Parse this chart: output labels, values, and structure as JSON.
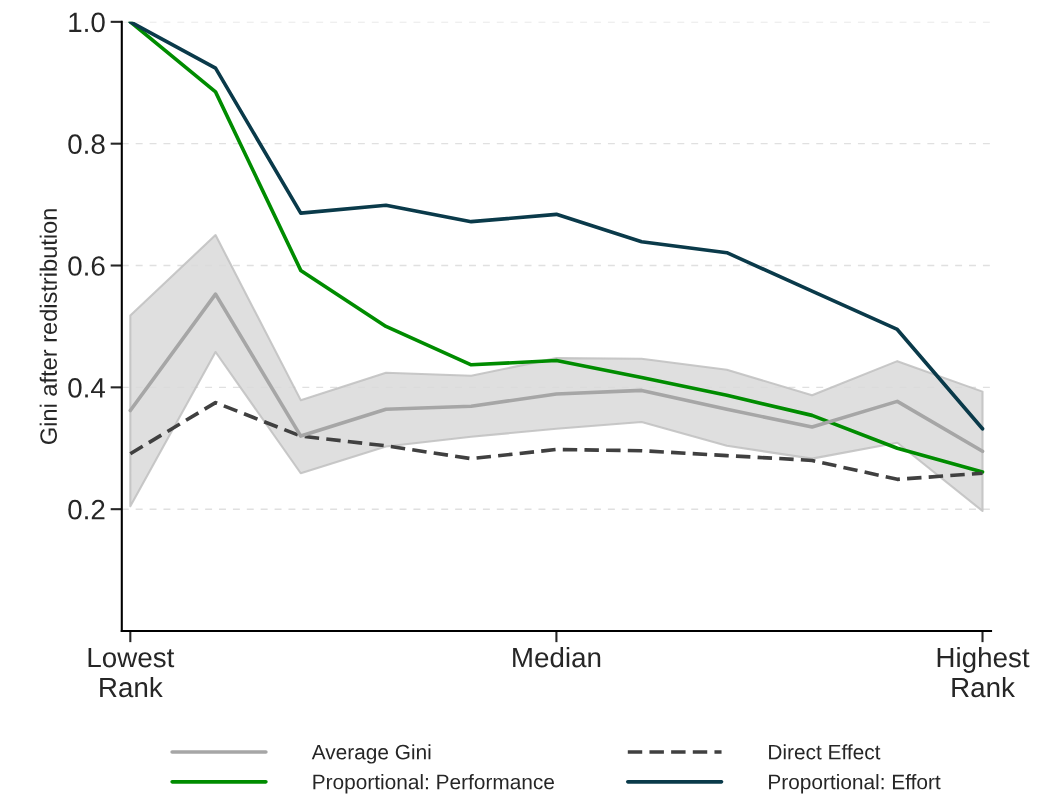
{
  "chart_data": {
    "type": "line",
    "ylabel": "Gini after redistribution",
    "categories": [
      "Lowest\nRank",
      null,
      null,
      null,
      null,
      "Median",
      null,
      null,
      null,
      null,
      "Highest\nRank"
    ],
    "ylim": [
      0,
      1.0
    ],
    "yticks": [
      {
        "value": 0.2,
        "label": "0.2"
      },
      {
        "value": 0.4,
        "label": "0.4"
      },
      {
        "value": 0.6,
        "label": "0.6"
      },
      {
        "value": 0.8,
        "label": "0.8"
      },
      {
        "value": 1.0,
        "label": "1.0"
      }
    ],
    "grid": "y",
    "legend": "bottom",
    "marker": "none",
    "series": [
      {
        "name": "Average Gini",
        "color": "#a6a6a6",
        "line_style": "solid",
        "values": [
          0.362,
          0.553,
          0.32,
          0.364,
          0.369,
          0.389,
          0.395,
          0.364,
          0.335,
          0.377,
          0.295
        ],
        "lower": [
          0.205,
          0.458,
          0.259,
          0.303,
          0.319,
          0.332,
          0.343,
          0.304,
          0.283,
          0.309,
          0.197
        ],
        "upper": [
          0.518,
          0.65,
          0.379,
          0.424,
          0.419,
          0.448,
          0.447,
          0.429,
          0.387,
          0.443,
          0.393
        ]
      },
      {
        "name": "Proportional: Performance",
        "color": "#008c00",
        "line_style": "solid",
        "values": [
          1.0,
          0.885,
          0.592,
          0.5,
          0.437,
          0.444,
          0.416,
          0.387,
          0.354,
          0.3,
          0.261
        ]
      },
      {
        "name": "Direct Effect",
        "color": "#404040",
        "line_style": "dashed",
        "values": [
          0.291,
          0.375,
          0.32,
          0.304,
          0.283,
          0.298,
          0.296,
          0.288,
          0.28,
          0.249,
          0.259
        ]
      },
      {
        "name": "Proportional: Effort",
        "color": "#0a3a4a",
        "line_style": "solid",
        "values": [
          1.0,
          0.924,
          0.686,
          0.699,
          0.672,
          0.684,
          0.639,
          0.621,
          0.558,
          0.495,
          0.332
        ]
      }
    ]
  }
}
